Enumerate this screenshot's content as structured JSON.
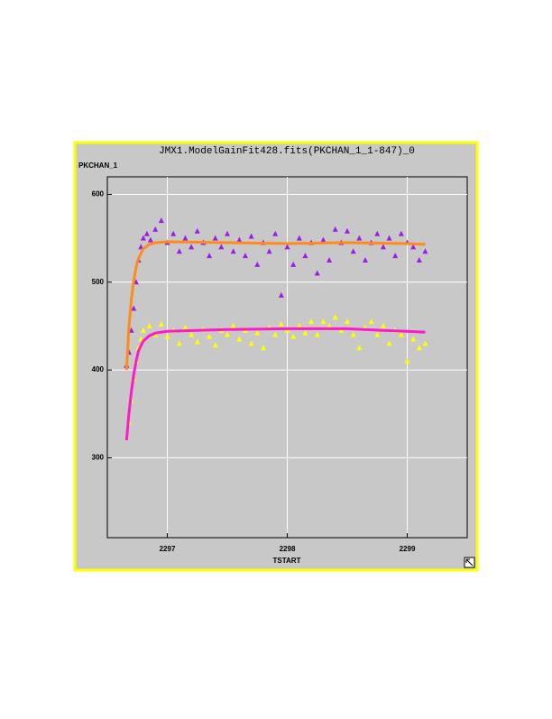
{
  "chart_data": {
    "type": "scatter",
    "title": "JMX1.ModelGainFit428.fits(PKCHAN_1_1-847)_0",
    "y_label": "PKCHAN_1",
    "x_label": "TSTART",
    "xlim": [
      2296.5,
      2299.5
    ],
    "ylim": [
      209,
      620
    ],
    "xticks": [
      2297,
      2298,
      2299
    ],
    "yticks": [
      300,
      400,
      500,
      600
    ],
    "grid": true,
    "series": [
      {
        "color": "#9b1ee6",
        "mode": "markers",
        "x": [
          2296.66,
          2296.68,
          2296.7,
          2296.72,
          2296.74,
          2296.76,
          2296.78,
          2296.8,
          2296.83,
          2296.86,
          2296.9,
          2296.95,
          2297.0,
          2297.05,
          2297.1,
          2297.15,
          2297.2,
          2297.25,
          2297.3,
          2297.35,
          2297.4,
          2297.45,
          2297.5,
          2297.55,
          2297.6,
          2297.65,
          2297.7,
          2297.75,
          2297.8,
          2297.85,
          2297.9,
          2297.95,
          2298.0,
          2298.05,
          2298.1,
          2298.15,
          2298.2,
          2298.25,
          2298.3,
          2298.35,
          2298.4,
          2298.45,
          2298.5,
          2298.55,
          2298.6,
          2298.65,
          2298.7,
          2298.75,
          2298.8,
          2298.85,
          2298.9,
          2298.95,
          2299.0,
          2299.05,
          2299.1,
          2299.15
        ],
        "values": [
          405,
          420,
          445,
          470,
          500,
          525,
          540,
          550,
          555,
          548,
          560,
          570,
          545,
          555,
          535,
          550,
          540,
          558,
          545,
          530,
          550,
          540,
          555,
          535,
          548,
          530,
          552,
          520,
          545,
          535,
          555,
          485,
          540,
          520,
          550,
          530,
          545,
          510,
          548,
          525,
          560,
          545,
          558,
          535,
          550,
          525,
          545,
          555,
          540,
          550,
          530,
          555,
          545,
          540,
          525,
          535
        ]
      },
      {
        "color": "#ffff00",
        "mode": "markers",
        "x": [
          2296.68,
          2296.7,
          2296.72,
          2296.74,
          2296.76,
          2296.78,
          2296.8,
          2296.85,
          2296.9,
          2296.95,
          2297.0,
          2297.05,
          2297.1,
          2297.15,
          2297.2,
          2297.25,
          2297.3,
          2297.35,
          2297.4,
          2297.45,
          2297.5,
          2297.55,
          2297.6,
          2297.65,
          2297.7,
          2297.75,
          2297.8,
          2297.85,
          2297.9,
          2297.95,
          2298.0,
          2298.05,
          2298.1,
          2298.15,
          2298.2,
          2298.25,
          2298.3,
          2298.35,
          2298.4,
          2298.45,
          2298.5,
          2298.55,
          2298.6,
          2298.65,
          2298.7,
          2298.75,
          2298.8,
          2298.85,
          2298.9,
          2298.95,
          2299.0,
          2299.05,
          2299.1,
          2299.15
        ],
        "values": [
          340,
          365,
          390,
          410,
          425,
          435,
          445,
          450,
          440,
          452,
          438,
          445,
          430,
          448,
          440,
          432,
          446,
          438,
          428,
          445,
          440,
          450,
          435,
          445,
          430,
          442,
          425,
          448,
          440,
          452,
          445,
          438,
          450,
          442,
          455,
          440,
          455,
          450,
          460,
          445,
          455,
          440,
          425,
          448,
          455,
          440,
          450,
          430,
          445,
          440,
          410,
          435,
          425,
          430
        ]
      },
      {
        "color": "#ff8c1a",
        "mode": "line",
        "x": [
          2296.66,
          2296.68,
          2296.7,
          2296.72,
          2296.74,
          2296.76,
          2296.8,
          2296.85,
          2296.9,
          2297.0,
          2297.5,
          2298.0,
          2298.5,
          2299.0,
          2299.15
        ],
        "values": [
          400,
          448,
          480,
          502,
          517,
          527,
          538,
          543,
          545,
          546,
          545,
          544,
          545,
          544,
          543
        ]
      },
      {
        "color": "#ff19c8",
        "mode": "line",
        "x": [
          2296.66,
          2296.68,
          2296.7,
          2296.72,
          2296.74,
          2296.76,
          2296.8,
          2296.85,
          2296.9,
          2297.0,
          2297.5,
          2298.0,
          2298.5,
          2298.8,
          2299.0,
          2299.15
        ],
        "values": [
          320,
          350,
          375,
          395,
          410,
          422,
          433,
          439,
          442,
          444,
          446,
          447,
          447,
          445,
          444,
          443
        ]
      }
    ]
  }
}
